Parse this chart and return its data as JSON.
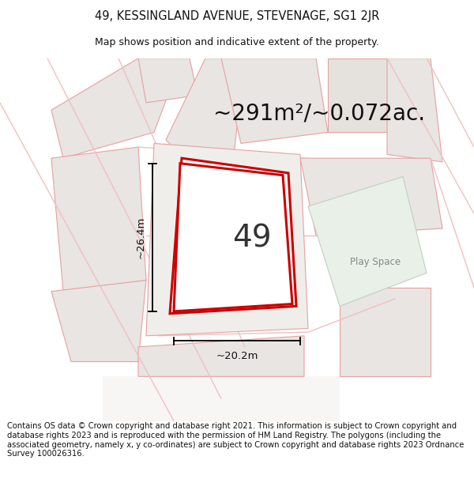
{
  "title_line1": "49, KESSINGLAND AVENUE, STEVENAGE, SG1 2JR",
  "title_line2": "Map shows position and indicative extent of the property.",
  "area_text": "~291m²/~0.072ac.",
  "width_label": "~20.2m",
  "height_label": "~26.4m",
  "plot_number": "49",
  "play_space_label": "Play Space",
  "footer_text": "Contains OS data © Crown copyright and database right 2021. This information is subject to Crown copyright and database rights 2023 and is reproduced with the permission of HM Land Registry. The polygons (including the associated geometry, namely x, y co-ordinates) are subject to Crown copyright and database rights 2023 Ordnance Survey 100026316.",
  "bg_color": "#ffffff",
  "map_bg": "#f7f5f3",
  "plot_fill": "#f0eeeb",
  "plot_border": "#cc0000",
  "neighbor_fill": "#e8e5e2",
  "neighbor_stroke": "#e8a0a0",
  "road_lines": "#f0c0c0",
  "green_fill": "#e8f0e8",
  "green_stroke": "#c0d0c0",
  "title_fontsize": 10.5,
  "subtitle_fontsize": 9.0,
  "area_fontsize": 20,
  "plot_num_fontsize": 28,
  "label_fontsize": 9.5,
  "footer_fontsize": 7.2,
  "play_fontsize": 8.5
}
